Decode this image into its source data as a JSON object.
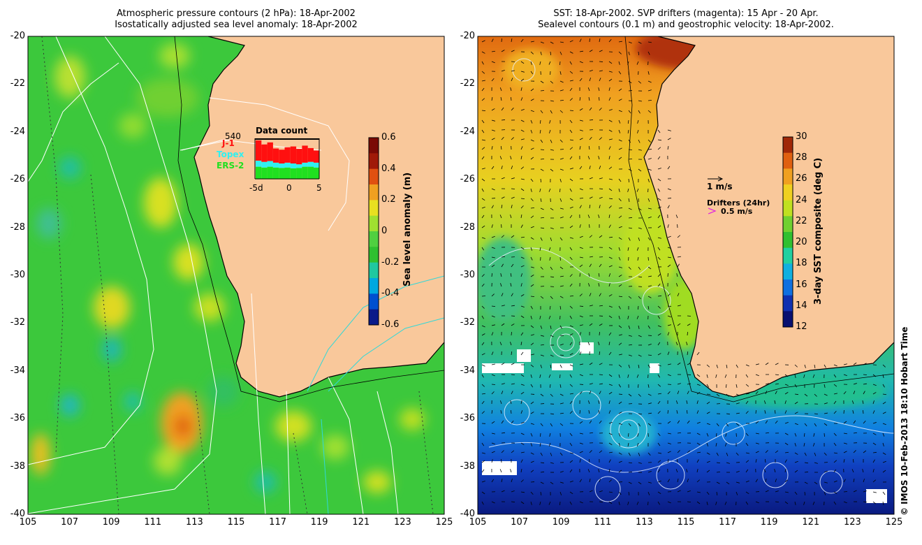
{
  "left_panel": {
    "title_line1": "Atmospheric pressure contours (2 hPa): 18-Apr-2002",
    "title_line2": "Isostatically adjusted sea level anomaly: 18-Apr-2002",
    "colorbar": {
      "label": "Sea level anomaly (m)",
      "ticks": [
        "0.6",
        "0.4",
        "0.2",
        "0",
        "-0.2",
        "-0.4",
        "-0.6"
      ],
      "colors": [
        "#0a1a8a",
        "#0050d0",
        "#00a8e0",
        "#20c8a0",
        "#30c030",
        "#50d040",
        "#a0e030",
        "#e8e020",
        "#f0a020",
        "#e05010",
        "#a01a08",
        "#7a0a05"
      ]
    },
    "datacount": {
      "title": "Data count",
      "max_label": "540",
      "series": [
        "J-1",
        "Topex",
        "ERS-2"
      ],
      "series_colors": [
        "#ff1010",
        "#30f0f0",
        "#20e020"
      ],
      "xticks": [
        "-5d",
        "0",
        "5"
      ]
    }
  },
  "right_panel": {
    "title_line1": "SST: 18-Apr-2002. SVP drifters (magenta): 15 Apr - 20 Apr.",
    "title_line2": "Sealevel contours (0.1 m) and geostrophic velocity: 18-Apr-2002.",
    "colorbar": {
      "label": "3-day SST composite (deg C)",
      "ticks": [
        "30",
        "28",
        "26",
        "24",
        "22",
        "20",
        "18",
        "16",
        "14",
        "12"
      ],
      "colors": [
        "#081070",
        "#1030b0",
        "#1070e0",
        "#10b0e0",
        "#20d0a0",
        "#30c030",
        "#70d030",
        "#c0e020",
        "#f0d020",
        "#f0a020",
        "#e06010",
        "#a02808"
      ]
    },
    "velocity_legend": "1 m/s",
    "drifters_title": "Drifters (24hr)",
    "drifters_speed": "0.5 m/s"
  },
  "axes": {
    "lat_ticks": [
      "-20",
      "-22",
      "-24",
      "-26",
      "-28",
      "-30",
      "-32",
      "-34",
      "-36",
      "-38",
      "-40"
    ],
    "lon_ticks": [
      "105",
      "107",
      "109",
      "111",
      "113",
      "115",
      "117",
      "119",
      "121",
      "123",
      "125"
    ]
  },
  "credit": "© IMOS 10-Feb-2013 18:10 Hobart Time",
  "land_color": "#f9c89b",
  "ocean_left_color": "#3cc83c",
  "coast_color": "#000000"
}
